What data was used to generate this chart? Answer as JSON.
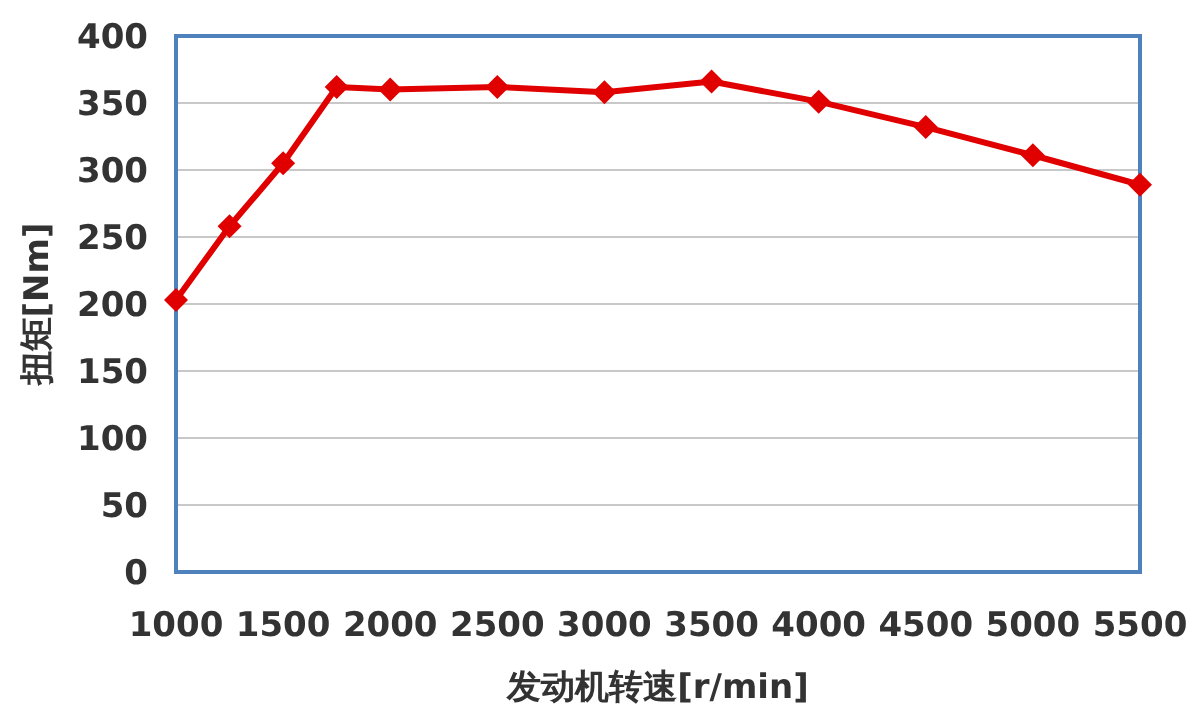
{
  "chart_data": {
    "type": "line",
    "xlabel": "发动机转速[r/min]",
    "ylabel": "扭矩[Nm]",
    "x": [
      1000,
      1250,
      1500,
      1750,
      2000,
      2500,
      3000,
      3500,
      4000,
      4500,
      5000,
      5500
    ],
    "series": [
      {
        "color": "#e00000",
        "values": [
          203,
          258,
          305,
          362,
          360,
          362,
          358,
          366,
          351,
          332,
          311,
          289
        ]
      }
    ],
    "xlim": [
      1000,
      5500
    ],
    "ylim": [
      0,
      400
    ],
    "xticks": [
      1000,
      1500,
      2000,
      2500,
      3000,
      3500,
      4000,
      4500,
      5000,
      5500
    ],
    "yticks": [
      0,
      50,
      100,
      150,
      200,
      250,
      300,
      350,
      400
    ],
    "grid": "y",
    "marker": "diamond",
    "line_style": "solid"
  }
}
